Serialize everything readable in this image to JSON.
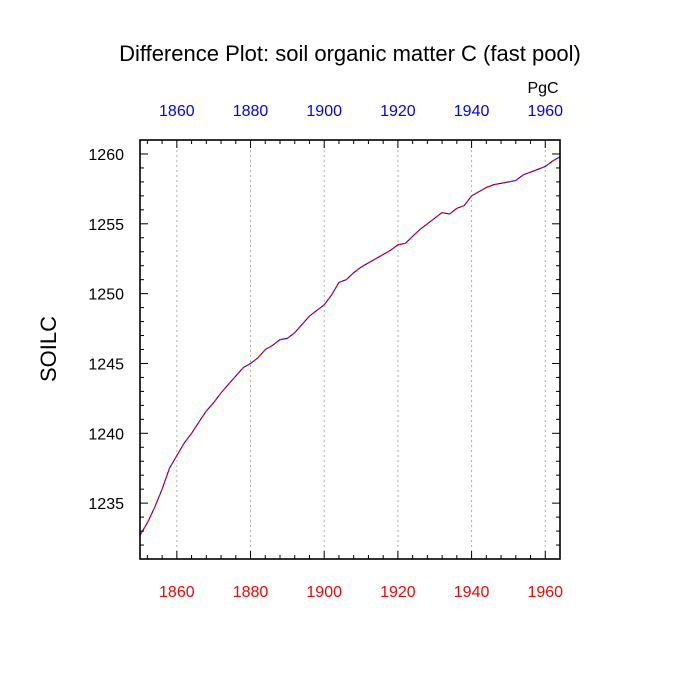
{
  "chart_data": {
    "type": "line",
    "title": "Difference Plot: soil organic matter C (fast pool)",
    "ylabel": "SOILC",
    "units_label": "PgC",
    "xlim": [
      1850,
      1964
    ],
    "ylim": [
      1231,
      1261
    ],
    "x_ticks": [
      1860,
      1880,
      1900,
      1920,
      1940,
      1960
    ],
    "y_ticks": [
      1235,
      1240,
      1245,
      1250,
      1255,
      1260
    ],
    "grid": "vertical dotted at x ticks",
    "colors": {
      "bottom_axis": "#ff0000",
      "top_axis": "#0000ff",
      "series_a": "#0000ff",
      "series_b": "#ff0000"
    },
    "series": [
      {
        "values_x": [
          1850,
          1852,
          1854,
          1856,
          1858,
          1860,
          1862,
          1864,
          1866,
          1868,
          1870,
          1872,
          1874,
          1876,
          1878,
          1880,
          1882,
          1884,
          1886,
          1888,
          1890,
          1892,
          1894,
          1896,
          1898,
          1900,
          1902,
          1904,
          1906,
          1908,
          1910,
          1912,
          1914,
          1916,
          1918,
          1920,
          1922,
          1924,
          1926,
          1928,
          1930,
          1932,
          1934,
          1936,
          1938,
          1940,
          1942,
          1944,
          1946,
          1948,
          1950,
          1952,
          1954,
          1956,
          1958,
          1960,
          1962,
          1964
        ],
        "values_y": [
          1232.7,
          1233.6,
          1234.7,
          1236.0,
          1237.5,
          1238.4,
          1239.3,
          1240.0,
          1240.8,
          1241.6,
          1242.2,
          1242.9,
          1243.5,
          1244.1,
          1244.7,
          1245.0,
          1245.4,
          1246.0,
          1246.3,
          1246.7,
          1246.8,
          1247.2,
          1247.8,
          1248.4,
          1248.8,
          1249.2,
          1249.9,
          1250.8,
          1251.0,
          1251.5,
          1251.9,
          1252.2,
          1252.5,
          1252.8,
          1253.1,
          1253.5,
          1253.6,
          1254.1,
          1254.6,
          1255.0,
          1255.4,
          1255.8,
          1255.7,
          1256.1,
          1256.3,
          1257.0,
          1257.3,
          1257.6,
          1257.8,
          1257.9,
          1258.0,
          1258.1,
          1258.5,
          1258.7,
          1258.9,
          1259.1,
          1259.5,
          1259.8
        ]
      }
    ]
  }
}
